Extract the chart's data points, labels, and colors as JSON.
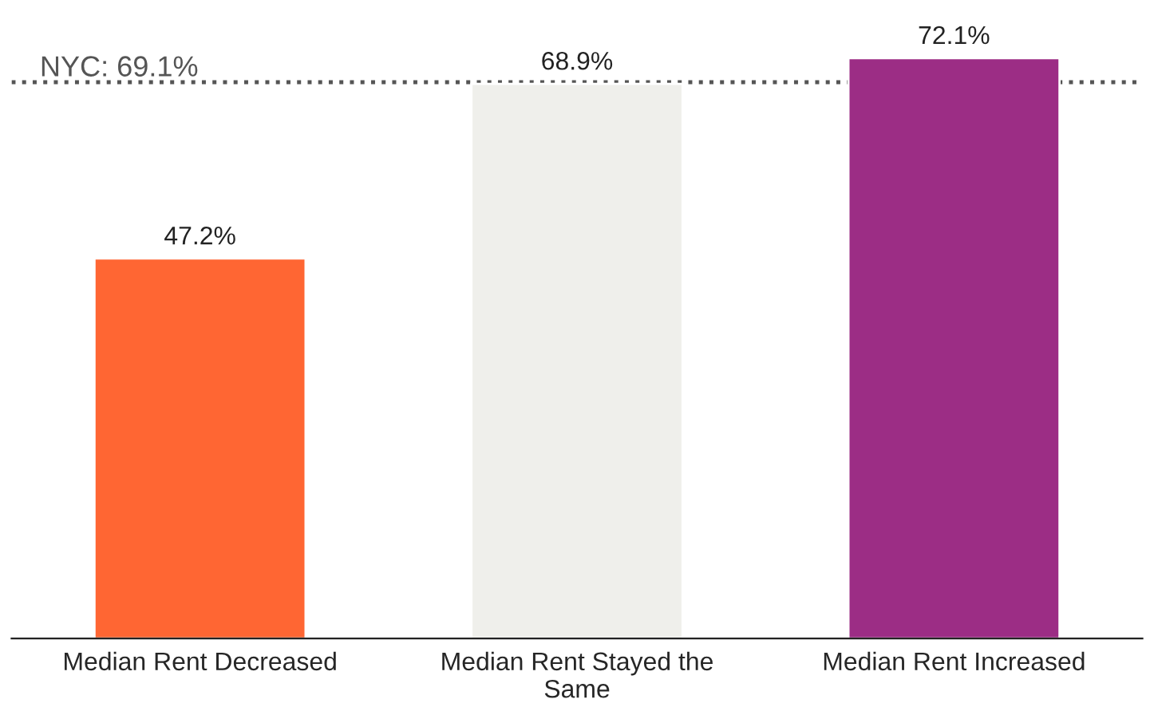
{
  "chart_data": {
    "type": "bar",
    "categories": [
      "Median Rent Decreased",
      "Median Rent Stayed the\nSame",
      "Median Rent Increased"
    ],
    "values": [
      47.2,
      68.9,
      72.1
    ],
    "colors": [
      "#ff6633",
      "#efefeb",
      "#9c2d85"
    ],
    "value_labels": [
      "47.2%",
      "68.9%",
      "72.1%"
    ],
    "ref_lines": [
      {
        "axis": "y",
        "value": 69.1,
        "label": "NYC: 69.1%",
        "color": "#555555",
        "line_style": "dotted"
      }
    ],
    "tick_labels": "x",
    "grid": false,
    "legend": false
  }
}
